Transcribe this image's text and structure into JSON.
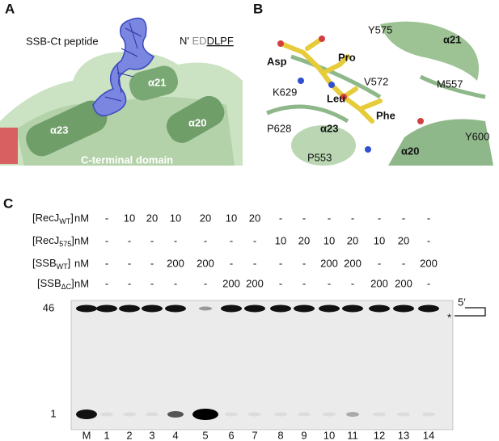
{
  "panels": {
    "a": {
      "label": "A",
      "peptide_label": "SSB-Ct peptide",
      "sequence": {
        "terminus": "N'",
        "gray": "ED",
        "underlined": "DLPF"
      },
      "helices": [
        "α21",
        "α23",
        "α20"
      ],
      "domain_label": "C-terminal domain"
    },
    "b": {
      "label": "B",
      "residues": [
        "Y575",
        "α21",
        "Asp",
        "Pro",
        "K629",
        "V572",
        "M557",
        "Leu",
        "P628",
        "α23",
        "Phe",
        "Y600",
        "P553",
        "α20"
      ]
    },
    "c": {
      "label": "C",
      "rows": [
        {
          "prefix": "[RecJ",
          "sub": "WT",
          "suffix": "]",
          "unit": "nM",
          "lanes": [
            "-",
            "10",
            "20",
            "10",
            "20",
            "10",
            "20",
            "-",
            "-",
            "-",
            "-",
            "-",
            "-",
            "-"
          ]
        },
        {
          "prefix": "[RecJ",
          "sub": "575",
          "suffix": "]",
          "unit": "nM",
          "lanes": [
            "-",
            "-",
            "-",
            "-",
            "-",
            "-",
            "-",
            "10",
            "20",
            "10",
            "20",
            "10",
            "20",
            "-"
          ]
        },
        {
          "prefix": "[SSB",
          "sub": "WT",
          "suffix": "]",
          "unit": "nM",
          "lanes": [
            "-",
            "-",
            "-",
            "200",
            "200",
            "-",
            "-",
            "-",
            "-",
            "200",
            "200",
            "-",
            "-",
            "200"
          ]
        },
        {
          "prefix": "[SSB",
          "sub": "ΔC",
          "suffix": "]",
          "unit": "nM",
          "lanes": [
            "-",
            "-",
            "-",
            "-",
            "-",
            "200",
            "200",
            "-",
            "-",
            "-",
            "-",
            "200",
            "200",
            "-"
          ]
        }
      ],
      "lanes": [
        "M",
        "1",
        "2",
        "3",
        "4",
        "5",
        "6",
        "7",
        "8",
        "9",
        "10",
        "11",
        "12",
        "13",
        "14"
      ],
      "markers": [
        "46",
        "1"
      ],
      "substrate_label": "5′",
      "asterisk": "*"
    }
  }
}
